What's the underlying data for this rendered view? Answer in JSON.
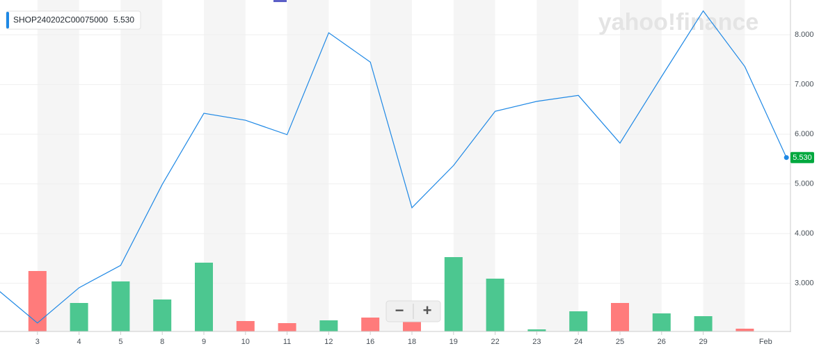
{
  "chart_data": {
    "type": "line",
    "title": "SHOP240202C00075000",
    "watermark": "yahoo!finance",
    "categories": [
      null,
      "3",
      "4",
      "5",
      "8",
      "9",
      "10",
      "11",
      "12",
      "16",
      "18",
      "19",
      "22",
      "23",
      "24",
      "25",
      "26",
      "29",
      null,
      null
    ],
    "month_label": "Feb",
    "values": [
      2.9,
      2.2,
      2.91,
      3.36,
      4.99,
      6.42,
      6.28,
      5.99,
      8.04,
      7.45,
      4.52,
      5.37,
      6.46,
      6.66,
      6.78,
      5.82,
      7.16,
      8.48,
      7.36,
      5.53
    ],
    "value_labels": [
      null,
      null,
      null,
      null,
      null,
      null,
      null,
      null,
      null,
      null,
      null,
      null,
      null,
      null,
      null,
      null,
      null,
      null,
      null,
      "5.530"
    ],
    "color": "#1e88e5",
    "volume": [
      null,
      87,
      41,
      72,
      46,
      99,
      15,
      12,
      16,
      20,
      15,
      107,
      76,
      3,
      29,
      41,
      26,
      22,
      4,
      null
    ],
    "up_color": "#4cc790",
    "down_color": "#ff7b7b",
    "last_value_color": "#00a83e",
    "ylim": [
      2.03,
      8.63
    ],
    "yticks": [
      {
        "value": 3,
        "label": "3.000"
      },
      {
        "value": 4,
        "label": "4.000"
      },
      {
        "value": 5,
        "label": "5.000"
      },
      {
        "value": 6,
        "label": "6.000"
      },
      {
        "value": 7,
        "label": "7.000"
      },
      {
        "value": 8,
        "label": "8.000"
      }
    ],
    "grid": true,
    "zoom_out": "−",
    "zoom_in": "+"
  }
}
